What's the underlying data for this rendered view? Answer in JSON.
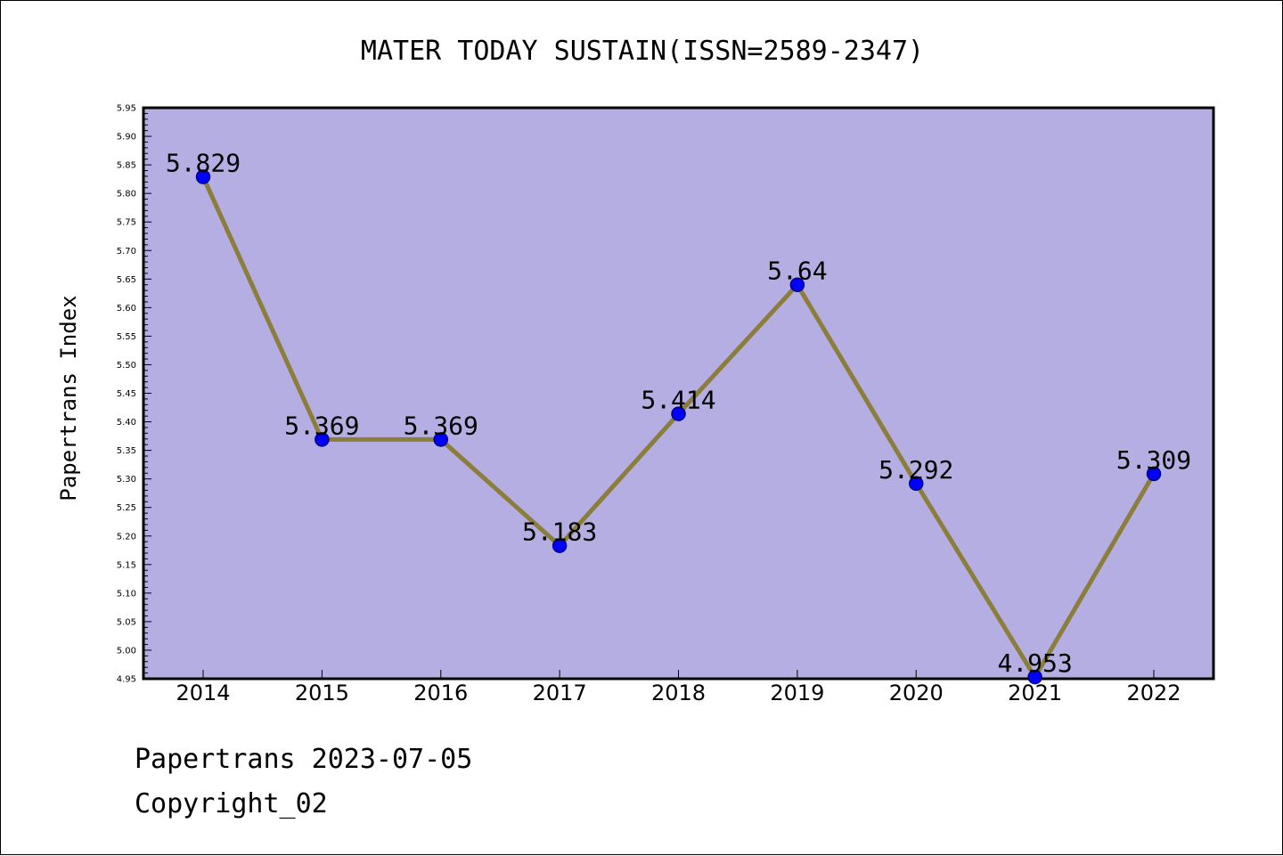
{
  "chart_data": {
    "type": "line",
    "title": "MATER TODAY SUSTAIN(ISSN=2589-2347)",
    "xlabel": "",
    "ylabel": "Papertrans Index",
    "categories": [
      "2014",
      "2015",
      "2016",
      "2017",
      "2018",
      "2019",
      "2020",
      "2021",
      "2022"
    ],
    "values": [
      5.829,
      5.369,
      5.369,
      5.183,
      5.414,
      5.64,
      5.292,
      4.953,
      5.309
    ],
    "data_labels": [
      "5.829",
      "5.369",
      "5.369",
      "5.183",
      "5.414",
      "5.64",
      "5.292",
      "4.953",
      "5.309"
    ],
    "ylim": [
      4.95,
      5.95
    ],
    "y_ticks": [
      "4.95",
      "5.00",
      "5.05",
      "5.10",
      "5.15",
      "5.20",
      "5.25",
      "5.30",
      "5.35",
      "5.40",
      "5.45",
      "5.50",
      "5.55",
      "5.60",
      "5.65",
      "5.70",
      "5.75",
      "5.80",
      "5.85",
      "5.90",
      "5.95"
    ],
    "grid": false,
    "colors": {
      "plot_background": "#b5aee2",
      "line": "#8b7d3a",
      "marker": "#0000ff"
    }
  },
  "footer": {
    "line1": "Papertrans 2023-07-05",
    "line2": "Copyright_02"
  }
}
